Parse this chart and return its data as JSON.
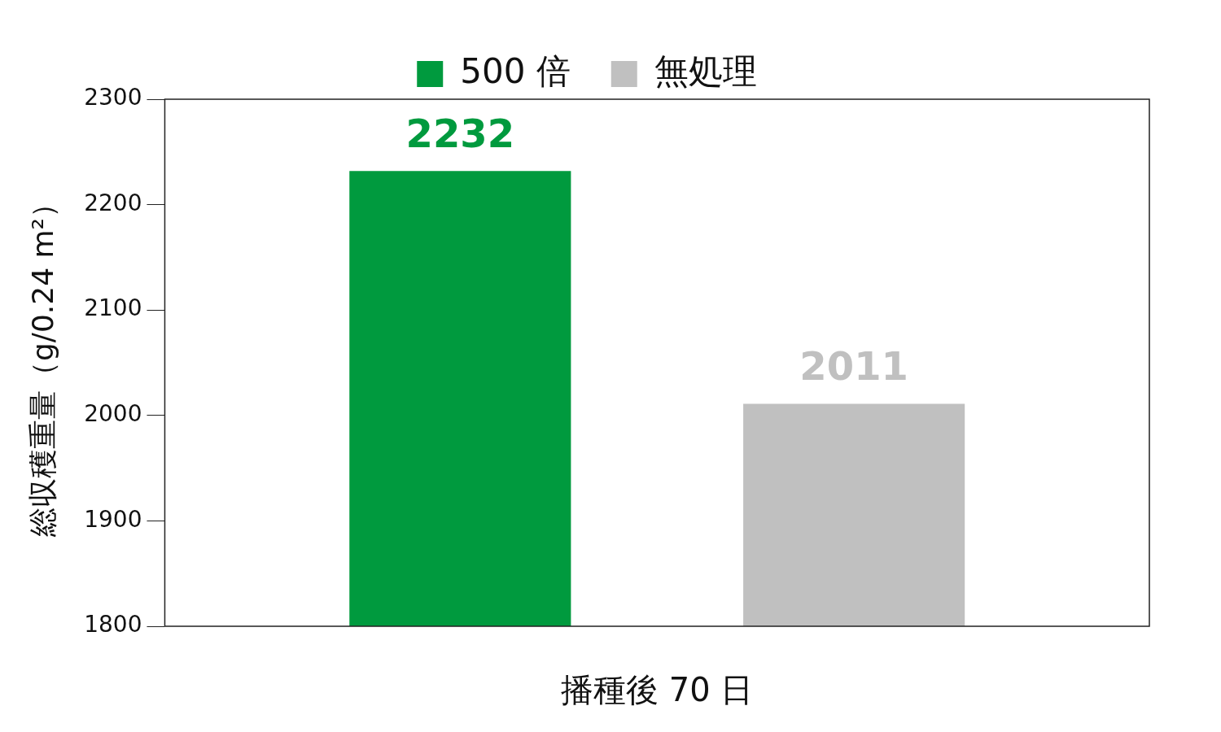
{
  "chart_data": {
    "type": "bar",
    "ylabel": "総収穫重量（g/0.24 m²）",
    "xlabel": "播種後 70 日",
    "categories": [
      null
    ],
    "series": [
      {
        "name": "500 倍",
        "color": "#009a3e",
        "values": [
          2232
        ]
      },
      {
        "name": "無処理",
        "color": "#c0c0c0",
        "values": [
          2011
        ]
      }
    ],
    "ylim": [
      1800,
      2300
    ],
    "yticks": [
      1800,
      1900,
      2000,
      2100,
      2200,
      2300
    ],
    "data_labels": true,
    "legend": "top"
  }
}
